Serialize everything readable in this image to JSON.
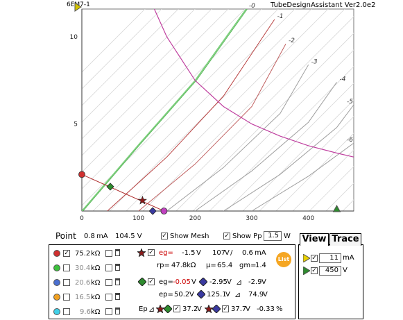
{
  "header": {
    "tube_name": "6EM7-1",
    "app_title": "TubeDesignAssistant Ver2.0e2"
  },
  "chart_data": {
    "type": "line",
    "title": "",
    "xlabel": "",
    "ylabel": "",
    "xlim": [
      0,
      480
    ],
    "ylim": [
      0,
      11.6
    ],
    "xticks": [
      0,
      100,
      200,
      300,
      400
    ],
    "yticks": [
      5,
      10
    ],
    "grid": true,
    "series": [
      {
        "name": "-0",
        "points": [
          [
            0,
            0
          ],
          [
            100,
            3.8
          ],
          [
            200,
            7.5
          ],
          [
            290,
            11.6
          ]
        ]
      },
      {
        "name": "-1",
        "points": [
          [
            45,
            0
          ],
          [
            150,
            3.1
          ],
          [
            250,
            6.6
          ],
          [
            340,
            11.0
          ]
        ]
      },
      {
        "name": "-2",
        "points": [
          [
            100,
            0
          ],
          [
            200,
            2.7
          ],
          [
            300,
            6.0
          ],
          [
            360,
            9.6
          ]
        ]
      },
      {
        "name": "-3",
        "points": [
          [
            150,
            0
          ],
          [
            250,
            2.5
          ],
          [
            350,
            5.6
          ],
          [
            400,
            8.4
          ]
        ]
      },
      {
        "name": "-4",
        "points": [
          [
            200,
            0
          ],
          [
            300,
            2.3
          ],
          [
            400,
            5.1
          ],
          [
            450,
            7.4
          ]
        ]
      },
      {
        "name": "-5",
        "points": [
          [
            250,
            0
          ],
          [
            350,
            2.1
          ],
          [
            450,
            4.8
          ],
          [
            480,
            6.1
          ]
        ]
      },
      {
        "name": "-6",
        "points": [
          [
            300,
            0
          ],
          [
            400,
            2.0
          ],
          [
            480,
            3.9
          ]
        ]
      }
    ],
    "pp_curve": {
      "points": [
        [
          128,
          11.6
        ],
        [
          150,
          10.0
        ],
        [
          200,
          7.5
        ],
        [
          250,
          6.0
        ],
        [
          300,
          5.0
        ],
        [
          350,
          4.3
        ],
        [
          400,
          3.75
        ],
        [
          450,
          3.33
        ],
        [
          480,
          3.1
        ]
      ]
    },
    "loadline": {
      "points": [
        [
          0,
          2.1
        ],
        [
          145,
          0
        ]
      ]
    },
    "markers": [
      {
        "shape": "circle",
        "color": "#d03030",
        "x": 0,
        "y": 2.1
      },
      {
        "shape": "diamond",
        "color": "#2e8b2e",
        "x": 50.2,
        "y": 1.4
      },
      {
        "shape": "star",
        "color": "#8b1a1a",
        "x": 107,
        "y": 0.6
      },
      {
        "shape": "diamond",
        "color": "#3a3aa0",
        "x": 125.1,
        "y": 0
      },
      {
        "shape": "circle",
        "color": "#c040c0",
        "x": 145,
        "y": 0
      }
    ],
    "axis_arrows": [
      {
        "axis": "y",
        "color": "#d4c400",
        "value": 11
      },
      {
        "axis": "x",
        "color": "#2e8b2e",
        "value": 450
      }
    ]
  },
  "status": {
    "point_label": "Point",
    "point_ma": "0.8",
    "ma_unit": "mA",
    "point_v": "104.5 V",
    "show_mesh_label": "Show Mesh",
    "show_pp_label": "Show Pp",
    "pp_value": "1.5",
    "pp_unit": "W"
  },
  "resistors": [
    {
      "color": "#d03030",
      "value": "75.2",
      "enabled": true,
      "unit": "kΩ"
    },
    {
      "color": "#3cc03c",
      "value": "30.4",
      "enabled": false,
      "unit": "kΩ"
    },
    {
      "color": "#4a6fd0",
      "value": "20.6",
      "enabled": false,
      "unit": "kΩ"
    },
    {
      "color": "#f0a020",
      "value": "16.5",
      "enabled": false,
      "unit": "kΩ"
    },
    {
      "color": "#40d0e8",
      "value": "9.6",
      "enabled": false,
      "unit": "kΩ"
    }
  ],
  "readout": {
    "eg_label": "eg=",
    "eg_value": "-1.5",
    "volt_unit": "V",
    "ep_value": "107",
    "ip_value": "0.6",
    "rp_label": "rp=",
    "rp_value": "47.8",
    "kohm_unit": "kΩ",
    "mu_label": "μ=",
    "mu_value": "65.4",
    "gm_label": "gm=",
    "gm_value": "1.4",
    "list_label": "List",
    "eg2_label": "eg=",
    "eg2_value": "-0.05",
    "eg3_value": "-2.95",
    "delta_v": "-2.9",
    "ep_label": "ep=",
    "ep2_value": "50.2",
    "ep3_value": "125.1",
    "delta_ep": "74.9",
    "epd_label": "Ep",
    "epd1_value": "37.2",
    "epd2_value": "37.7",
    "distortion": "-0.33",
    "percent": "%",
    "delta_sym": "⊿"
  },
  "view": {
    "tab_view": "View",
    "tab_trace": "Trace",
    "ma_value": "11",
    "ma_unit": "mA",
    "v_value": "450",
    "v_unit": "V"
  }
}
